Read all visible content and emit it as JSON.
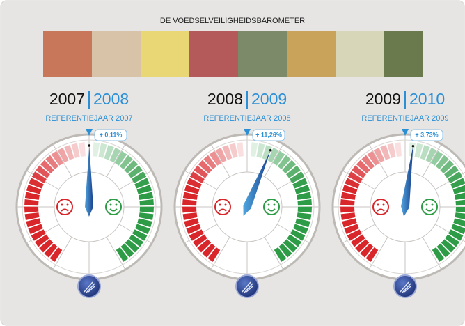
{
  "header": {
    "title": "DE VOEDSELVEILIGHEIDSBAROMETER"
  },
  "chart_data": [
    {
      "type": "gauge",
      "title": "2007",
      "subtitle": "2008",
      "caption": "REFERENTIEJAAR 2007",
      "values": [
        0.11
      ],
      "value_labels": [
        "+ 0,11%"
      ],
      "ylim": [
        -75,
        75
      ]
    },
    {
      "type": "gauge",
      "title": "2008",
      "subtitle": "2009",
      "caption": "REFERENTIEJAAR 2008",
      "values": [
        11.26
      ],
      "value_labels": [
        "+ 11,26%"
      ],
      "ylim": [
        -75,
        75
      ]
    },
    {
      "type": "gauge",
      "title": "2009",
      "subtitle": "2010",
      "caption": "REFERENTIEJAAR 2009",
      "values": [
        3.73
      ],
      "value_labels": [
        "+ 3,73%"
      ],
      "ylim": [
        -75,
        75
      ]
    }
  ]
}
